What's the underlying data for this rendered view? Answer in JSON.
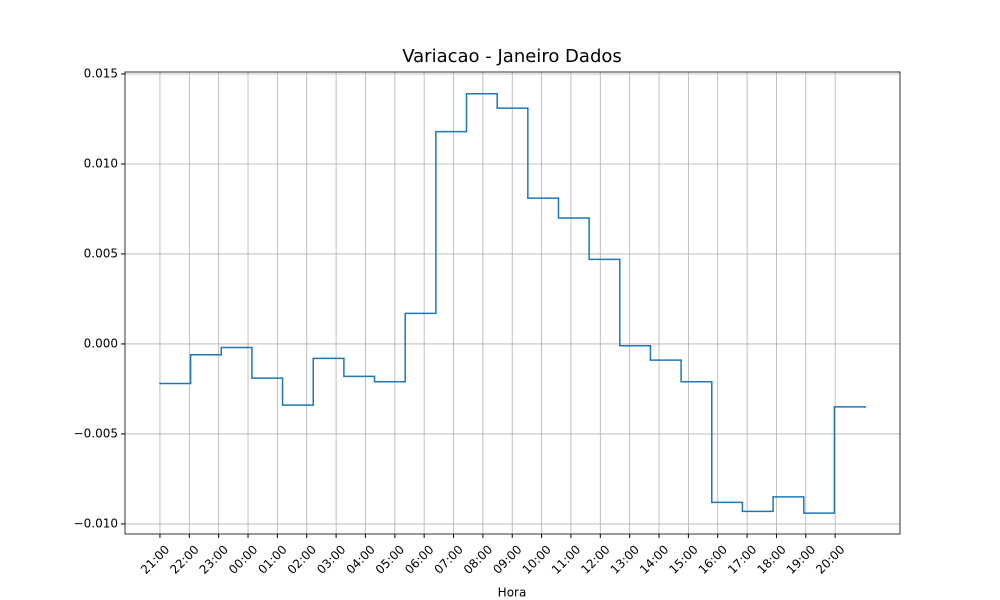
{
  "chart_data": {
    "type": "line",
    "drawstyle": "steps-post",
    "title": "Variacao - Janeiro Dados",
    "xlabel": "Hora",
    "x": [
      0,
      1,
      2,
      3,
      4,
      5,
      6,
      7,
      8,
      9,
      10,
      11,
      12,
      13,
      14,
      15,
      16,
      17,
      18,
      19,
      20,
      21,
      22,
      23
    ],
    "series": [
      {
        "color": "#1f77b4",
        "values": [
          -0.0022,
          -0.0006,
          -0.0002,
          -0.0019,
          -0.0034,
          -0.0008,
          -0.0018,
          -0.0021,
          0.0017,
          0.0118,
          0.0139,
          0.0131,
          0.0081,
          0.007,
          0.0047,
          -0.0001,
          -0.0009,
          -0.0021,
          -0.0088,
          -0.0093,
          -0.0085,
          -0.0094,
          -0.0035,
          -0.0035
        ]
      }
    ],
    "xlim": [
      -1.14,
      24.14
    ],
    "xticks": [
      {
        "value": 0,
        "label": "21:00"
      },
      {
        "value": 0.958,
        "label": "22:00"
      },
      {
        "value": 1.915,
        "label": "23:00"
      },
      {
        "value": 2.873,
        "label": "00:00"
      },
      {
        "value": 3.83,
        "label": "01:00"
      },
      {
        "value": 4.788,
        "label": "02:00"
      },
      {
        "value": 5.746,
        "label": "03:00"
      },
      {
        "value": 6.703,
        "label": "04:00"
      },
      {
        "value": 7.661,
        "label": "05:00"
      },
      {
        "value": 8.618,
        "label": "06:00"
      },
      {
        "value": 9.576,
        "label": "07:00"
      },
      {
        "value": 10.534,
        "label": "08:00"
      },
      {
        "value": 11.491,
        "label": "09:00"
      },
      {
        "value": 12.449,
        "label": "10:00"
      },
      {
        "value": 13.406,
        "label": "11:00"
      },
      {
        "value": 14.364,
        "label": "12:00"
      },
      {
        "value": 15.322,
        "label": "13:00"
      },
      {
        "value": 16.279,
        "label": "14:00"
      },
      {
        "value": 17.237,
        "label": "15:00"
      },
      {
        "value": 18.194,
        "label": "16:00"
      },
      {
        "value": 19.152,
        "label": "17:00"
      },
      {
        "value": 20.11,
        "label": "18:00"
      },
      {
        "value": 21.067,
        "label": "19:00"
      },
      {
        "value": 22.025,
        "label": "20:00"
      }
    ],
    "ylim": [
      -0.01056,
      0.01511
    ],
    "yticks": [
      {
        "value": -0.01,
        "label": "−0.010"
      },
      {
        "value": -0.005,
        "label": "−0.005"
      },
      {
        "value": 0,
        "label": "0.000"
      },
      0.005,
      {
        "value": 0.01,
        "label": "0.010"
      },
      0.015
    ],
    "grid": true
  }
}
